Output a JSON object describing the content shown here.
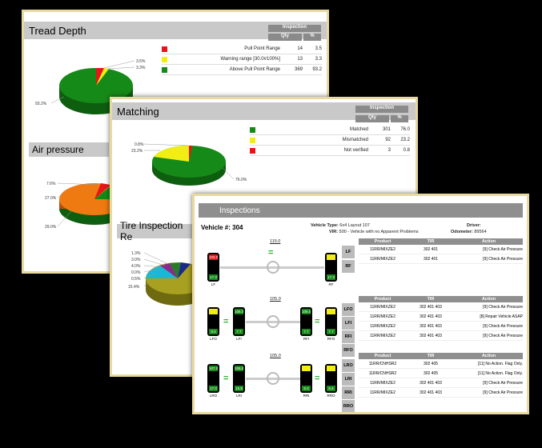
{
  "sheet1": {
    "title": "Tread Depth",
    "inspection_header": "Inspection",
    "qty_header": "Qty",
    "pct_header": "%",
    "rows": [
      {
        "label": "Pull Point Range",
        "qty": "14",
        "pct": "3.5",
        "color": "#e8141c"
      },
      {
        "label": "Warning range [30.0#100%]",
        "qty": "13",
        "pct": "3.3",
        "color": "#f2ee14"
      },
      {
        "label": "Above Pull Point Range",
        "qty": "369",
        "pct": "93.2",
        "color": "#168a18"
      }
    ],
    "pie_labels": [
      "3.5%",
      "3.3%",
      "93.2%"
    ],
    "air_pressure": "Air pressure",
    "air_labels": [
      "7.6%",
      "27.0%",
      "29.0%"
    ],
    "tire_inspection": "Tire Inspection Re",
    "tire_labels": [
      "1.3%",
      "3.0%",
      "4.0%",
      "0.0%",
      "0.5%",
      "15.4%"
    ]
  },
  "sheet2": {
    "title": "Matching",
    "inspection_header": "Inspection",
    "qty_header": "Qty",
    "pct_header": "%",
    "rows": [
      {
        "label": "Matched",
        "qty": "301",
        "pct": "76.0",
        "color": "#168a18"
      },
      {
        "label": "Mismatched",
        "qty": "92",
        "pct": "23.2",
        "color": "#f2ee14"
      },
      {
        "label": "Not verified",
        "qty": "3",
        "pct": "0.8",
        "color": "#e8141c"
      }
    ],
    "pie_labels": [
      "0.8%",
      "23.2%",
      "76.0%"
    ]
  },
  "sheet3": {
    "title": "Inspections",
    "vehicle_label": "Vehicle #: 304",
    "vehicle_type_label": "Vehicle Type:",
    "vehicle_type": "6x4 Layout 107",
    "vir_label": "VIR:",
    "vir": "500 - Vehicle with no Apparent Problems",
    "driver_label": "Driver:",
    "odometer_label": "Odometer:",
    "odometer": "89564",
    "table_headers": {
      "product": "Product",
      "tir": "TIR",
      "action": "Action"
    },
    "axles": [
      {
        "pressure": "115.0",
        "tires": [
          {
            "name": "LF",
            "top": "103.0",
            "bottom": "17.3"
          },
          {
            "name": "RF",
            "top": "",
            "bottom": "17.3"
          }
        ],
        "positions": [
          "LF",
          "RF"
        ],
        "rows": [
          {
            "product": "11RR/MIXZE2",
            "sub": "0",
            "tir": "302   401",
            "action": "[9] Check Air Pressure"
          },
          {
            "product": "11RR/MIXZE2",
            "sub": "0",
            "tir": "302   401",
            "action": "[9] Check Air Pressure"
          }
        ]
      },
      {
        "pressure": "105.0",
        "tires": [
          {
            "name": "LFO",
            "top": "",
            "bottom": "9.0"
          },
          {
            "name": "LFI",
            "top": "106.0",
            "bottom": "7.7"
          },
          {
            "name": "RFI",
            "top": "106.0",
            "bottom": "7.7"
          },
          {
            "name": "RFO",
            "top": "",
            "bottom": "7.7"
          }
        ],
        "positions": [
          "LFO",
          "LFI",
          "RFI",
          "RFO"
        ],
        "rows": [
          {
            "product": "11RR/MIXZE2",
            "sub": "0",
            "tir": "302   401   403",
            "action": "[9] Check Air Pressure"
          },
          {
            "product": "11RR/MIXZE2",
            "sub": "0",
            "tir": "302   401   403",
            "action": "[8] Repair Vehicle ASAP"
          },
          {
            "product": "11RR/MIXZE2",
            "sub": "0",
            "tir": "302   401   403",
            "action": "[9] Check Air Pressure"
          },
          {
            "product": "11RR/MIXZE2",
            "sub": "0",
            "tir": "302   401   403",
            "action": "[9] Check Air Pressure"
          }
        ]
      },
      {
        "pressure": "105.0",
        "tires": [
          {
            "name": "LRO",
            "top": "107.0",
            "bottom": "17.0"
          },
          {
            "name": "LRI",
            "top": "106.0",
            "bottom": "16.8"
          },
          {
            "name": "RRI",
            "top": "",
            "bottom": "9.3"
          },
          {
            "name": "RRO",
            "top": "",
            "bottom": "6.4"
          }
        ],
        "positions": [
          "LRO",
          "LRI",
          "RRI",
          "RRO"
        ],
        "rows": [
          {
            "product": "11RR/CNHSR2",
            "sub": "0",
            "tir": "302   405",
            "action": "[11] No Action.  Flag Only."
          },
          {
            "product": "11RR/CNHSR2",
            "sub": "0",
            "tir": "302   405",
            "action": "[11] No Action.  Flag Only."
          },
          {
            "product": "11RR/MIXZE2",
            "sub": "0",
            "tir": "302   401   403",
            "action": "[9] Check Air Pressure"
          },
          {
            "product": "11RR/MIXZE2",
            "sub": "0",
            "tir": "302   401   403",
            "action": "[9] Check Air Pressure"
          }
        ]
      }
    ]
  }
}
